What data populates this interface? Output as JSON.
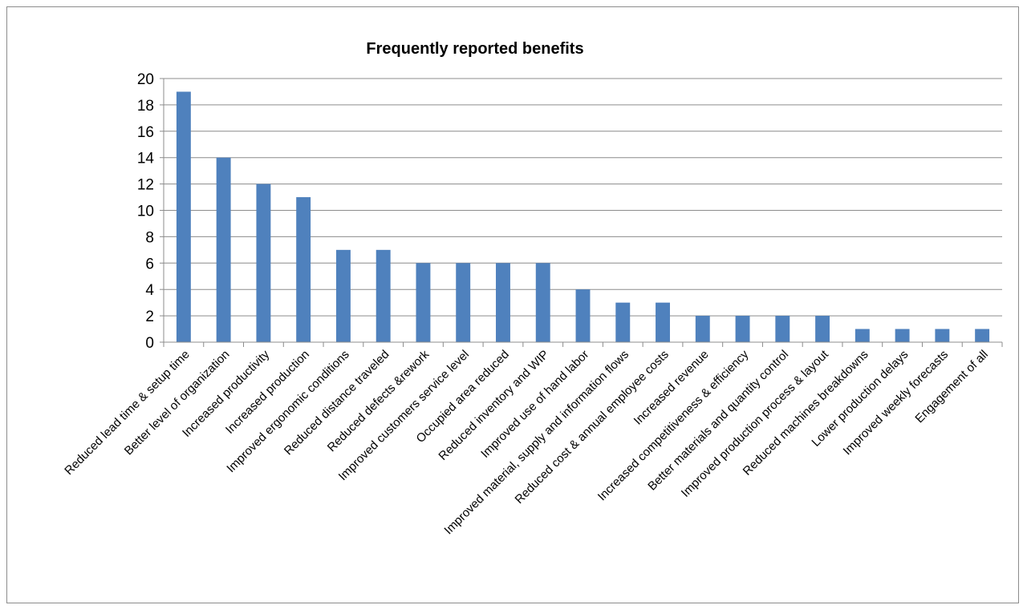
{
  "chart_data": {
    "type": "bar",
    "title": "Frequently reported benefits",
    "xlabel": "",
    "ylabel": "",
    "ylim": [
      0,
      20
    ],
    "ytick_step": 2,
    "grid": true,
    "legend": "none",
    "bar_color": "#4f81bd",
    "categories": [
      "Reduced lead time & setup time",
      "Better level of organization",
      "Increased productivity",
      "Increased production",
      "Improved ergonomic conditions",
      "Reduced distance traveled",
      "Reduced defects &rework",
      "Improved customers service level",
      "Occupied area reduced",
      "Reduced inventory and WIP",
      "Improved use of hand labor",
      "Improved material, supply and information flows",
      "Reduced cost & annual employee costs",
      "Increased revenue",
      "Increased competitiveness & efficiency",
      "Better materials and quantity control",
      "Improved production process & layout",
      "Reduced machines breakdowns",
      "Lower production delays",
      "Improved weekly forecasts",
      "Engagement of all"
    ],
    "values": [
      19,
      14,
      12,
      11,
      7,
      7,
      6,
      6,
      6,
      6,
      4,
      3,
      3,
      2,
      2,
      2,
      2,
      1,
      1,
      1,
      1
    ]
  }
}
